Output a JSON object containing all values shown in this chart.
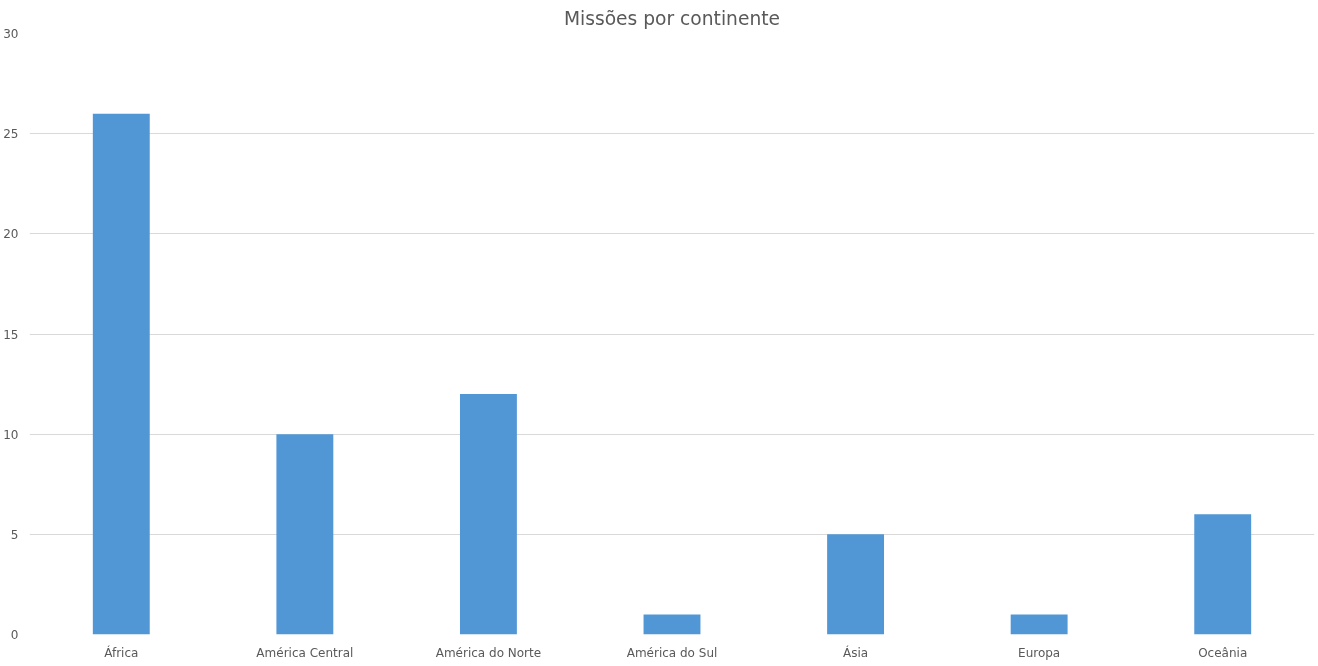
{
  "chart_data": {
    "type": "bar",
    "title": "Missões por continente",
    "categories": [
      "África",
      "América Central",
      "América do Norte",
      "América do Sul",
      "Ásia",
      "Europa",
      "Oceânia"
    ],
    "values": [
      26,
      10,
      12,
      1,
      5,
      1,
      6
    ],
    "color": "#5197d5",
    "ylim": [
      0,
      30
    ],
    "yticks": [
      0,
      5,
      10,
      15,
      20,
      25,
      30
    ],
    "grid": "y"
  }
}
